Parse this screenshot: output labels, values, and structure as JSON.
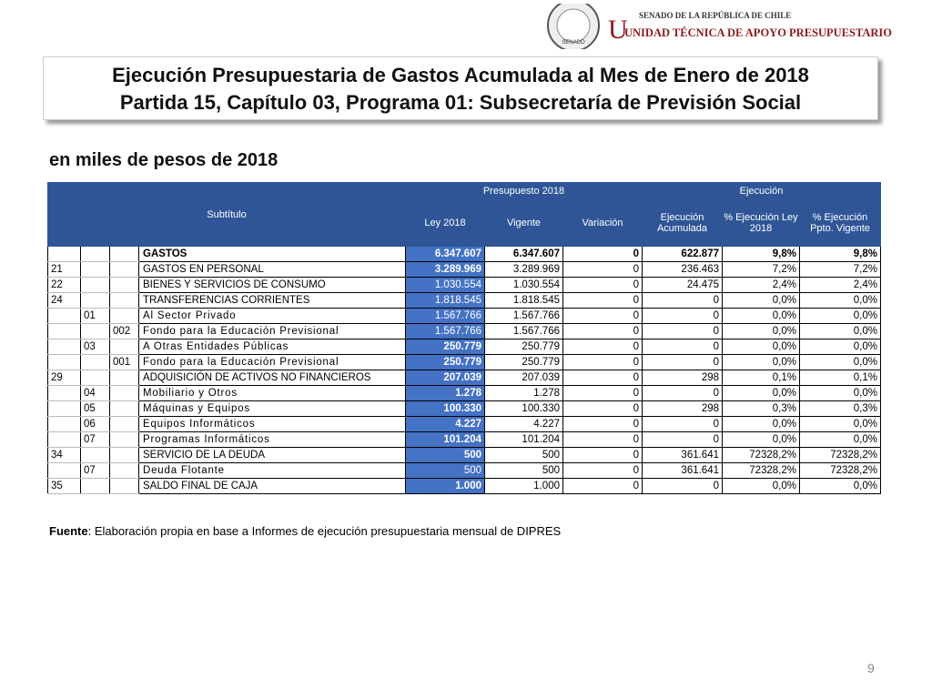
{
  "header": {
    "institution": "SENADO DE LA REPÚBLICA DE CHILE",
    "unit": "UNIDAD TÉCNICA DE APOYO PRESUPUESTARIO",
    "seal": "SENADO"
  },
  "title": {
    "line1": "Ejecución Presupuestaria de Gastos Acumulada al Mes de Enero de 2018",
    "line2": "Partida 15, Capítulo 03, Programa 01: Subsecretaría de Previsión Social"
  },
  "subtitle": "en miles de pesos de 2018",
  "table": {
    "header": {
      "subtitulo": "Subtítulo",
      "presupuesto": "Presupuesto 2018",
      "ejecucion": "Ejecución",
      "columns": [
        "Ley 2018",
        "Vigente",
        "Variación",
        "Ejecución Acumulada",
        "% Ejecución Ley 2018",
        "% Ejecución Ppto. Vigente"
      ]
    },
    "rows": [
      [
        "",
        "",
        "",
        "GASTOS",
        "6.347.607",
        "6.347.607",
        "0",
        "622.877",
        "9,8%",
        "9,8%"
      ],
      [
        "21",
        "",
        "",
        "GASTOS EN PERSONAL",
        "3.289.969",
        "3.289.969",
        "0",
        "236.463",
        "7,2%",
        "7,2%"
      ],
      [
        "22",
        "",
        "",
        "BIENES Y SERVICIOS DE CONSUMO",
        "1.030.554",
        "1.030.554",
        "0",
        "24.475",
        "2,4%",
        "2,4%"
      ],
      [
        "24",
        "",
        "",
        "TRANSFERENCIAS CORRIENTES",
        "1.818.545",
        "1.818.545",
        "0",
        "0",
        "0,0%",
        "0,0%"
      ],
      [
        "",
        "01",
        "",
        "Al Sector Privado",
        "1.567.766",
        "1.567.766",
        "0",
        "0",
        "0,0%",
        "0,0%"
      ],
      [
        "",
        "",
        "002",
        "Fondo para la Educación Previsional",
        "1.567.766",
        "1.567.766",
        "0",
        "0",
        "0,0%",
        "0,0%"
      ],
      [
        "",
        "03",
        "",
        "A Otras Entidades Públicas",
        "250.779",
        "250.779",
        "0",
        "0",
        "0,0%",
        "0,0%"
      ],
      [
        "",
        "",
        "001",
        "Fondo para la Educación Previsional",
        "250.779",
        "250.779",
        "0",
        "0",
        "0,0%",
        "0,0%"
      ],
      [
        "29",
        "",
        "",
        "ADQUISICIÓN DE ACTIVOS NO FINANCIEROS",
        "207.039",
        "207.039",
        "0",
        "298",
        "0,1%",
        "0,1%"
      ],
      [
        "",
        "04",
        "",
        "Mobiliario y Otros",
        "1.278",
        "1.278",
        "0",
        "0",
        "0,0%",
        "0,0%"
      ],
      [
        "",
        "05",
        "",
        "Máquinas y Equipos",
        "100.330",
        "100.330",
        "0",
        "298",
        "0,3%",
        "0,3%"
      ],
      [
        "",
        "06",
        "",
        "Equipos Informáticos",
        "4.227",
        "4.227",
        "0",
        "0",
        "0,0%",
        "0,0%"
      ],
      [
        "",
        "07",
        "",
        "Programas Informáticos",
        "101.204",
        "101.204",
        "0",
        "0",
        "0,0%",
        "0,0%"
      ],
      [
        "34",
        "",
        "",
        "SERVICIO DE LA DEUDA",
        "500",
        "500",
        "0",
        "361.641",
        "72328,2%",
        "72328,2%"
      ],
      [
        "",
        "07",
        "",
        "Deuda Flotante",
        "500",
        "500",
        "0",
        "361.641",
        "72328,2%",
        "72328,2%"
      ],
      [
        "35",
        "",
        "",
        "SALDO FINAL DE CAJA",
        "1.000",
        "1.000",
        "0",
        "0",
        "0,0%",
        "0,0%"
      ]
    ]
  },
  "source": {
    "label": "Fuente",
    "text": ": Elaboración propia en base  a Informes de ejecución presupuestaria mensual de DIPRES"
  },
  "page_number": "9"
}
